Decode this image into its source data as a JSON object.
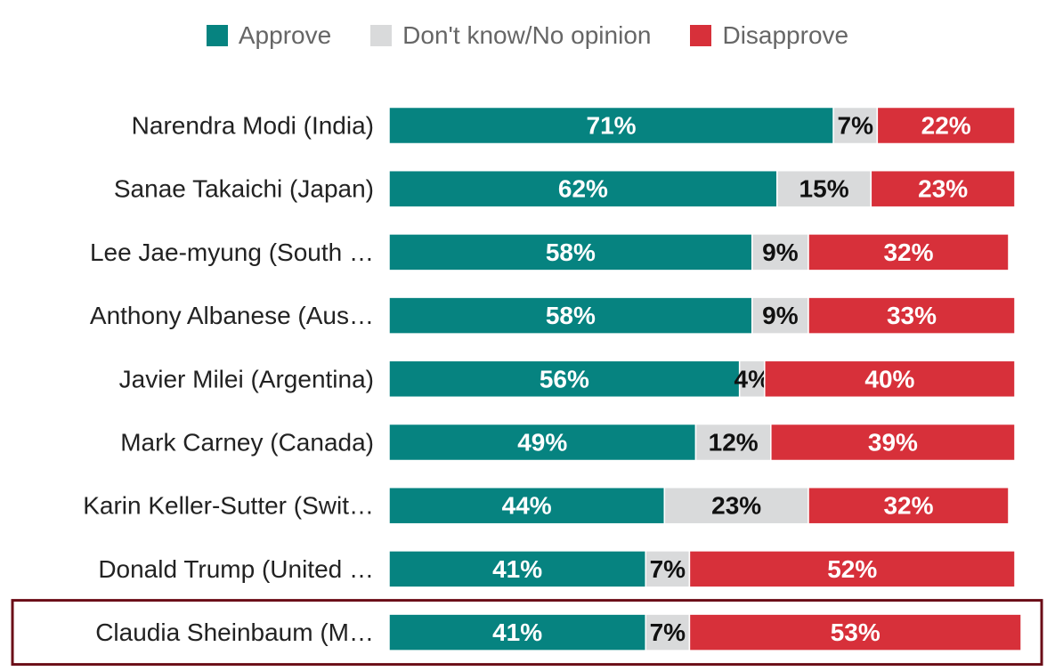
{
  "colors": {
    "approve": "#068380",
    "dont_know": "#d9dadb",
    "disapprove": "#d7303a",
    "highlight_border": "#6b0d17"
  },
  "legend": [
    {
      "key": "approve",
      "label": "Approve"
    },
    {
      "key": "dont_know",
      "label": "Don't know/No opinion"
    },
    {
      "key": "disapprove",
      "label": "Disapprove"
    }
  ],
  "chart_data": {
    "type": "bar",
    "orientation": "horizontal",
    "stacked": true,
    "unit": "%",
    "xlim": [
      0,
      100
    ],
    "legend_position": "top-center",
    "categories": [
      "Narendra Modi (India)",
      "Sanae Takaichi (Japan)",
      "Lee Jae-myung (South …",
      "Anthony Albanese (Aus…",
      "Javier Milei (Argentina)",
      "Mark Carney (Canada)",
      "Karin Keller-Sutter (Swit…",
      "Donald Trump (United …",
      "Claudia Sheinbaum (M…"
    ],
    "series": [
      {
        "name": "Approve",
        "key": "approve",
        "values": [
          71,
          62,
          58,
          58,
          56,
          49,
          44,
          41,
          41
        ]
      },
      {
        "name": "Don't know/No opinion",
        "key": "dont_know",
        "values": [
          7,
          15,
          9,
          9,
          4,
          12,
          23,
          7,
          7
        ]
      },
      {
        "name": "Disapprove",
        "key": "disapprove",
        "values": [
          22,
          23,
          32,
          33,
          40,
          39,
          32,
          52,
          53
        ]
      }
    ],
    "highlighted_category": "Claudia Sheinbaum (M…"
  }
}
